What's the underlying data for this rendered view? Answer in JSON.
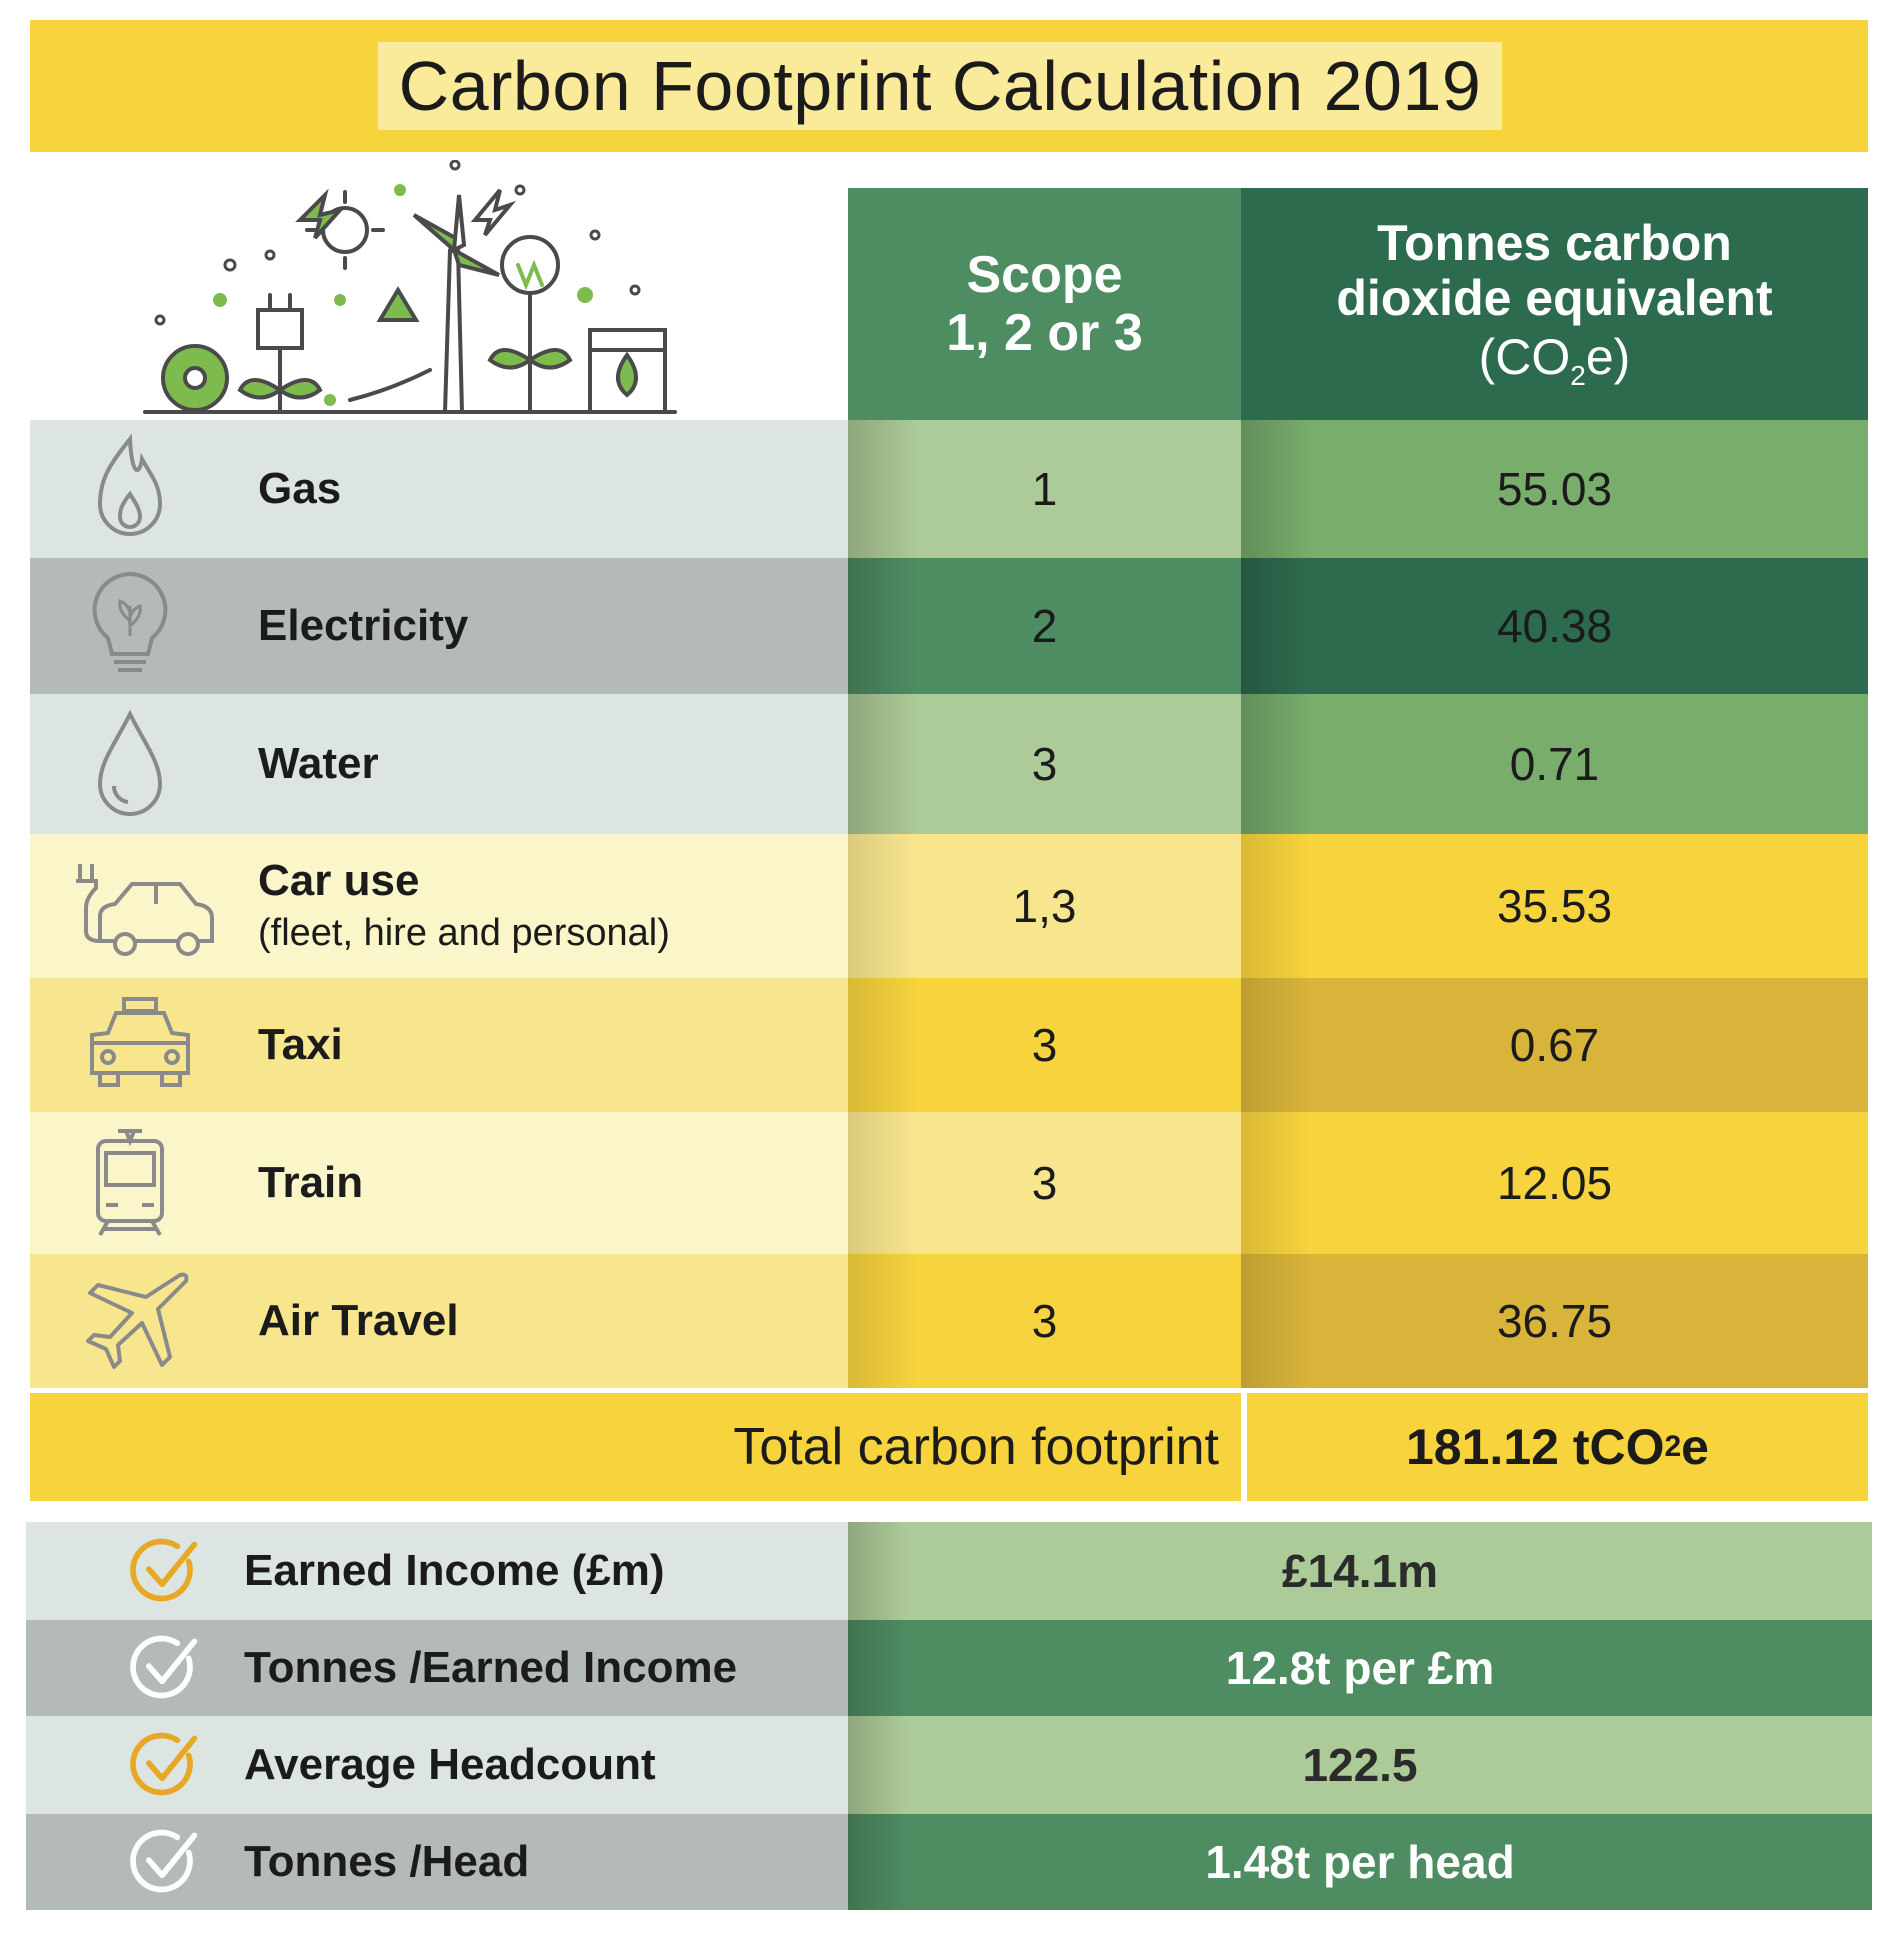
{
  "title": "Carbon Footprint Calculation 2019",
  "headers": {
    "scope_line1": "Scope",
    "scope_line2": "1, 2 or 3",
    "tonnes_line1": "Tonnes carbon",
    "tonnes_line2": "dioxide equivalent",
    "tonnes_line3_pre": "(CO",
    "tonnes_line3_sub": "2",
    "tonnes_line3_post": "e)"
  },
  "rows": [
    {
      "label": "Gas",
      "sublabel": "",
      "scope": "1",
      "value": "55.03",
      "icon": "flame-icon"
    },
    {
      "label": "Electricity",
      "sublabel": "",
      "scope": "2",
      "value": "40.38",
      "icon": "lightbulb-icon"
    },
    {
      "label": "Water",
      "sublabel": "",
      "scope": "3",
      "value": "0.71",
      "icon": "water-drop-icon"
    },
    {
      "label": "Car use",
      "sublabel": "(fleet, hire and personal)",
      "scope": "1,3",
      "value": "35.53",
      "icon": "electric-car-icon"
    },
    {
      "label": "Taxi",
      "sublabel": "",
      "scope": "3",
      "value": "0.67",
      "icon": "taxi-icon"
    },
    {
      "label": "Train",
      "sublabel": "",
      "scope": "3",
      "value": "12.05",
      "icon": "train-icon"
    },
    {
      "label": "Air Travel",
      "sublabel": "",
      "scope": "3",
      "value": "36.75",
      "icon": "airplane-icon"
    }
  ],
  "total": {
    "label": "Total carbon footprint",
    "value_pre": "181.12 tCO",
    "value_sub": "2",
    "value_post": "e"
  },
  "summary": [
    {
      "label": "Earned Income (£m)",
      "value": "£14.1m"
    },
    {
      "label": "Tonnes /Earned Income",
      "value": "12.8t per £m"
    },
    {
      "label": "Average Headcount",
      "value": "122.5"
    },
    {
      "label": "Tonnes /Head",
      "value": "1.48t per head"
    }
  ],
  "colors": {
    "yellow": "#f7d33d",
    "yellow_light": "#faf6c9",
    "yellow_mid": "#f8e68f",
    "green_dark": "#2d6b4e",
    "green_mid": "#4e8c62",
    "green_light": "#adcb98",
    "green_soft": "#78ad6c",
    "grey_light": "#dde5e3",
    "grey_dark": "#b4bab8",
    "check_orange": "#e8a825"
  }
}
